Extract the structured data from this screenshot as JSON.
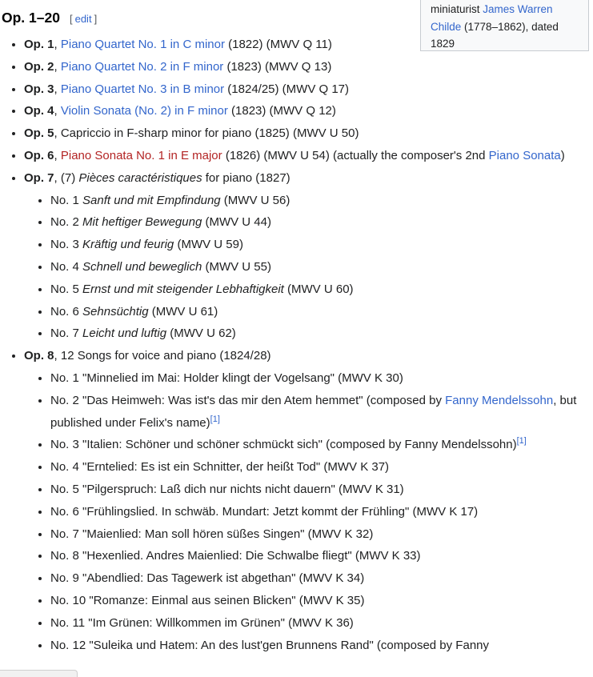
{
  "theme": {
    "text_color": "#202122",
    "link_color": "#3366cc",
    "redlink_color": "#b32424",
    "caption_box_bg": "#f8f9fa",
    "caption_box_border": "#c8ccd1"
  },
  "heading": {
    "title": "Op. 1–20",
    "edit_label": "edit",
    "bracket_open": "[",
    "bracket_close": "]"
  },
  "image_caption": {
    "segments": [
      {
        "type": "text",
        "text": "miniaturist "
      },
      {
        "type": "link",
        "text": "James Warren Childe"
      },
      {
        "type": "text",
        "text": " (1778–1862), dated 1829"
      }
    ]
  },
  "works_list": [
    {
      "name": "op-1",
      "segments": [
        {
          "type": "bold",
          "text": "Op. 1"
        },
        {
          "type": "text",
          "text": ", "
        },
        {
          "type": "link",
          "text": "Piano Quartet No. 1 in C minor"
        },
        {
          "type": "text",
          "text": " (1822) (MWV Q 11)"
        }
      ]
    },
    {
      "name": "op-2",
      "segments": [
        {
          "type": "bold",
          "text": "Op. 2"
        },
        {
          "type": "text",
          "text": ", "
        },
        {
          "type": "link",
          "text": "Piano Quartet No. 2 in F minor"
        },
        {
          "type": "text",
          "text": " (1823) (MWV Q 13)"
        }
      ]
    },
    {
      "name": "op-3",
      "segments": [
        {
          "type": "bold",
          "text": "Op. 3"
        },
        {
          "type": "text",
          "text": ", "
        },
        {
          "type": "link",
          "text": "Piano Quartet No. 3 in B minor"
        },
        {
          "type": "text",
          "text": " (1824/25) (MWV Q 17)"
        }
      ]
    },
    {
      "name": "op-4",
      "segments": [
        {
          "type": "bold",
          "text": "Op. 4"
        },
        {
          "type": "text",
          "text": ", "
        },
        {
          "type": "link",
          "text": "Violin Sonata (No. 2) in F minor"
        },
        {
          "type": "text",
          "text": " (1823) (MWV Q 12)"
        }
      ]
    },
    {
      "name": "op-5",
      "segments": [
        {
          "type": "bold",
          "text": "Op. 5"
        },
        {
          "type": "text",
          "text": ", Capriccio in F-sharp minor for piano (1825) (MWV U 50)"
        }
      ]
    },
    {
      "name": "op-6",
      "segments": [
        {
          "type": "bold",
          "text": "Op. 6"
        },
        {
          "type": "text",
          "text": ", "
        },
        {
          "type": "redlink",
          "text": "Piano Sonata No. 1 in E major"
        },
        {
          "type": "text",
          "text": " (1826) (MWV U 54) (actually the composer's 2nd "
        },
        {
          "type": "link",
          "text": "Piano Sonata"
        },
        {
          "type": "text",
          "text": ")"
        }
      ]
    },
    {
      "name": "op-7",
      "segments": [
        {
          "type": "bold",
          "text": "Op. 7"
        },
        {
          "type": "text",
          "text": ", (7) "
        },
        {
          "type": "italic",
          "text": "Pièces caractéristiques"
        },
        {
          "type": "text",
          "text": " for piano (1827)"
        }
      ],
      "children": [
        {
          "name": "op-7-no-1",
          "segments": [
            {
              "type": "text",
              "text": "No. 1 "
            },
            {
              "type": "italic",
              "text": "Sanft und mit Empfindung"
            },
            {
              "type": "text",
              "text": " (MWV U 56)"
            }
          ]
        },
        {
          "name": "op-7-no-2",
          "segments": [
            {
              "type": "text",
              "text": "No. 2 "
            },
            {
              "type": "italic",
              "text": "Mit heftiger Bewegung"
            },
            {
              "type": "text",
              "text": " (MWV U 44)"
            }
          ]
        },
        {
          "name": "op-7-no-3",
          "segments": [
            {
              "type": "text",
              "text": "No. 3 "
            },
            {
              "type": "italic",
              "text": "Kräftig und feurig"
            },
            {
              "type": "text",
              "text": " (MWV U 59)"
            }
          ]
        },
        {
          "name": "op-7-no-4",
          "segments": [
            {
              "type": "text",
              "text": "No. 4 "
            },
            {
              "type": "italic",
              "text": "Schnell und beweglich"
            },
            {
              "type": "text",
              "text": " (MWV U 55)"
            }
          ]
        },
        {
          "name": "op-7-no-5",
          "segments": [
            {
              "type": "text",
              "text": "No. 5 "
            },
            {
              "type": "italic",
              "text": "Ernst und mit steigender Lebhaftigkeit"
            },
            {
              "type": "text",
              "text": " (MWV U 60)"
            }
          ]
        },
        {
          "name": "op-7-no-6",
          "segments": [
            {
              "type": "text",
              "text": "No. 6 "
            },
            {
              "type": "italic",
              "text": "Sehnsüchtig"
            },
            {
              "type": "text",
              "text": " (MWV U 61)"
            }
          ]
        },
        {
          "name": "op-7-no-7",
          "segments": [
            {
              "type": "text",
              "text": "No. 7 "
            },
            {
              "type": "italic",
              "text": "Leicht und luftig"
            },
            {
              "type": "text",
              "text": " (MWV U 62)"
            }
          ]
        }
      ]
    },
    {
      "name": "op-8",
      "segments": [
        {
          "type": "bold",
          "text": "Op. 8"
        },
        {
          "type": "text",
          "text": ", 12 Songs for voice and piano (1824/28)"
        }
      ],
      "children": [
        {
          "name": "op-8-no-1",
          "segments": [
            {
              "type": "text",
              "text": "No. 1 \"Minnelied im Mai: Holder klingt der Vogelsang\" (MWV K 30)"
            }
          ]
        },
        {
          "name": "op-8-no-2",
          "segments": [
            {
              "type": "text",
              "text": "No. 2 \"Das Heimweh: Was ist's das mir den Atem hemmet\" (composed by "
            },
            {
              "type": "link",
              "text": "Fanny Mendelssohn"
            },
            {
              "type": "text",
              "text": ", but published under Felix's name)"
            },
            {
              "type": "sup",
              "text": "[1]"
            }
          ]
        },
        {
          "name": "op-8-no-3",
          "segments": [
            {
              "type": "text",
              "text": "No. 3 \"Italien: Schöner und schöner schmückt sich\" (composed by Fanny Mendelssohn)"
            },
            {
              "type": "sup",
              "text": "[1]"
            }
          ]
        },
        {
          "name": "op-8-no-4",
          "segments": [
            {
              "type": "text",
              "text": "No. 4 \"Erntelied: Es ist ein Schnitter, der heißt Tod\" (MWV K 37)"
            }
          ]
        },
        {
          "name": "op-8-no-5",
          "segments": [
            {
              "type": "text",
              "text": "No. 5 \"Pilgerspruch: Laß dich nur nichts nicht dauern\" (MWV K 31)"
            }
          ]
        },
        {
          "name": "op-8-no-6",
          "segments": [
            {
              "type": "text",
              "text": "No. 6 \"Frühlingslied. In schwäb. Mundart: Jetzt kommt der Frühling\" (MWV K 17)"
            }
          ]
        },
        {
          "name": "op-8-no-7",
          "segments": [
            {
              "type": "text",
              "text": "No. 7 \"Maienlied: Man soll hören süßes Singen\" (MWV K 32)"
            }
          ]
        },
        {
          "name": "op-8-no-8",
          "segments": [
            {
              "type": "text",
              "text": "No. 8 \"Hexenlied. Andres Maienlied: Die Schwalbe fliegt\" (MWV K 33)"
            }
          ]
        },
        {
          "name": "op-8-no-9",
          "segments": [
            {
              "type": "text",
              "text": "No. 9 \"Abendlied: Das Tagewerk ist abgethan\" (MWV K 34)"
            }
          ]
        },
        {
          "name": "op-8-no-10",
          "segments": [
            {
              "type": "text",
              "text": "No. 10 \"Romanze: Einmal aus seinen Blicken\" (MWV K 35)"
            }
          ]
        },
        {
          "name": "op-8-no-11",
          "segments": [
            {
              "type": "text",
              "text": "No. 11 \"Im Grünen: Willkommen im Grünen\" (MWV K 36)"
            }
          ]
        },
        {
          "name": "op-8-no-12",
          "segments": [
            {
              "type": "text",
              "text": "No. 12 \"Suleika und Hatem: An des lust'gen Brunnens Rand\" (composed by Fanny"
            }
          ]
        }
      ]
    }
  ]
}
